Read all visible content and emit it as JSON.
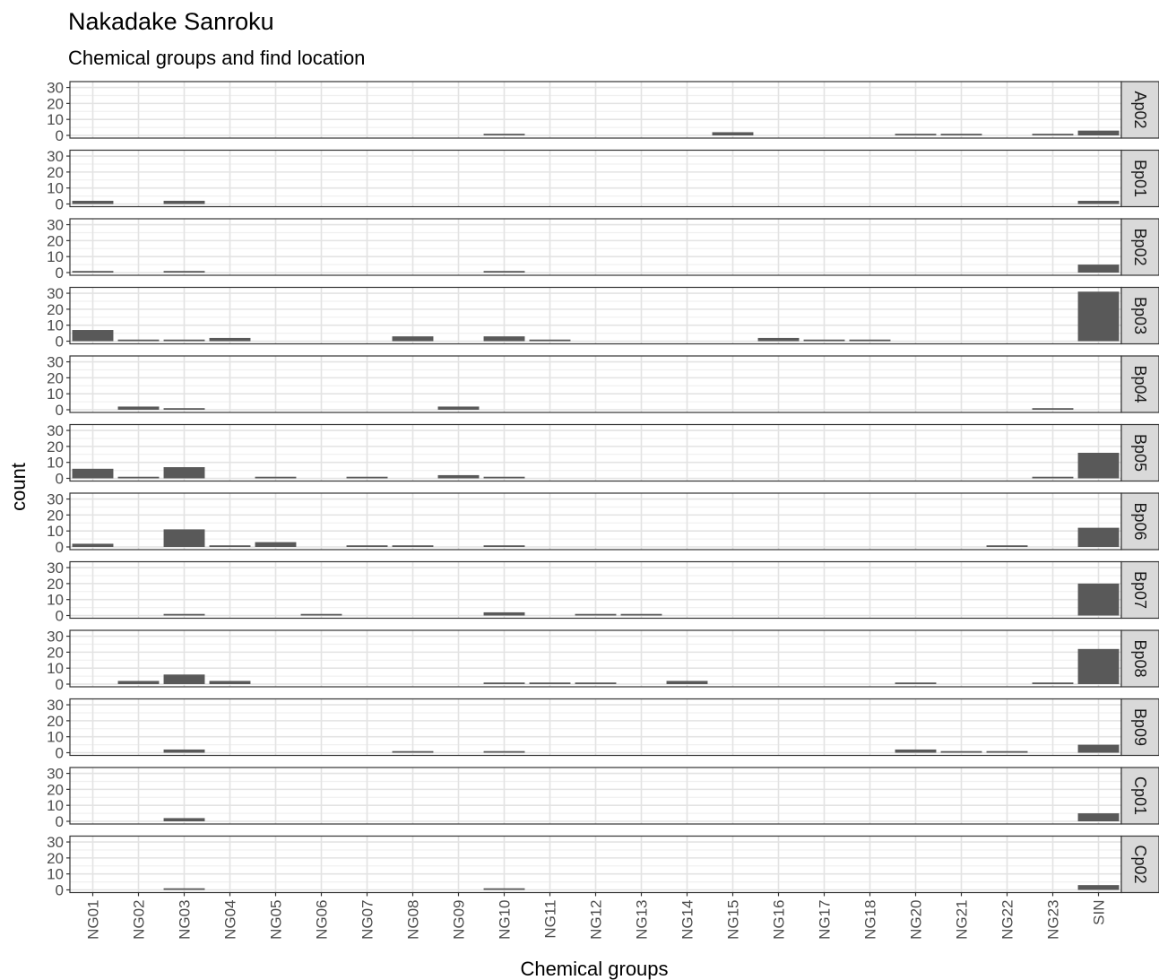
{
  "chart_data": {
    "type": "bar",
    "title": "Nakadake Sanroku",
    "subtitle": "Chemical groups and find location",
    "xlabel": "Chemical groups",
    "ylabel": "count",
    "ylim": [
      0,
      32
    ],
    "yticks": [
      0,
      10,
      20,
      30
    ],
    "grid": true,
    "legend": "none",
    "bar_color": "#595959",
    "strip_color": "#d9d9d9",
    "categories": [
      "NG01",
      "NG02",
      "NG03",
      "NG04",
      "NG05",
      "NG06",
      "NG07",
      "NG08",
      "NG09",
      "NG10",
      "NG11",
      "NG12",
      "NG13",
      "NG14",
      "NG15",
      "NG16",
      "NG17",
      "NG18",
      "NG20",
      "NG21",
      "NG22",
      "NG23",
      "SIN"
    ],
    "series": [
      {
        "name": "Ap02",
        "values": [
          0,
          0,
          0,
          0,
          0,
          0,
          0,
          0,
          0,
          1,
          0,
          0,
          0,
          0,
          2,
          0,
          0,
          0,
          1,
          1,
          0,
          1,
          3
        ]
      },
      {
        "name": "Bp01",
        "values": [
          2,
          0,
          2,
          0,
          0,
          0,
          0,
          0,
          0,
          0,
          0,
          0,
          0,
          0,
          0,
          0,
          0,
          0,
          0,
          0,
          0,
          0,
          2
        ]
      },
      {
        "name": "Bp02",
        "values": [
          1,
          0,
          1,
          0,
          0,
          0,
          0,
          0,
          0,
          1,
          0,
          0,
          0,
          0,
          0,
          0,
          0,
          0,
          0,
          0,
          0,
          0,
          5
        ]
      },
      {
        "name": "Bp03",
        "values": [
          7,
          1,
          1,
          2,
          0,
          0,
          0,
          3,
          0,
          3,
          1,
          0,
          0,
          0,
          0,
          2,
          1,
          1,
          0,
          0,
          0,
          0,
          31
        ]
      },
      {
        "name": "Bp04",
        "values": [
          0,
          2,
          1,
          0,
          0,
          0,
          0,
          0,
          2,
          0,
          0,
          0,
          0,
          0,
          0,
          0,
          0,
          0,
          0,
          0,
          0,
          1,
          0
        ]
      },
      {
        "name": "Bp05",
        "values": [
          6,
          1,
          7,
          0,
          1,
          0,
          1,
          0,
          2,
          1,
          0,
          0,
          0,
          0,
          0,
          0,
          0,
          0,
          0,
          0,
          0,
          1,
          16
        ]
      },
      {
        "name": "Bp06",
        "values": [
          2,
          0,
          11,
          1,
          3,
          0,
          1,
          1,
          0,
          1,
          0,
          0,
          0,
          0,
          0,
          0,
          0,
          0,
          0,
          0,
          1,
          0,
          12
        ]
      },
      {
        "name": "Bp07",
        "values": [
          0,
          0,
          1,
          0,
          0,
          1,
          0,
          0,
          0,
          2,
          0,
          1,
          1,
          0,
          0,
          0,
          0,
          0,
          0,
          0,
          0,
          0,
          20
        ]
      },
      {
        "name": "Bp08",
        "values": [
          0,
          2,
          6,
          2,
          0,
          0,
          0,
          0,
          0,
          1,
          1,
          1,
          0,
          2,
          0,
          0,
          0,
          0,
          1,
          0,
          0,
          1,
          22
        ]
      },
      {
        "name": "Bp09",
        "values": [
          0,
          0,
          2,
          0,
          0,
          0,
          0,
          1,
          0,
          1,
          0,
          0,
          0,
          0,
          0,
          0,
          0,
          0,
          2,
          1,
          1,
          0,
          5
        ]
      },
      {
        "name": "Cp01",
        "values": [
          0,
          0,
          2,
          0,
          0,
          0,
          0,
          0,
          0,
          0,
          0,
          0,
          0,
          0,
          0,
          0,
          0,
          0,
          0,
          0,
          0,
          0,
          5
        ]
      },
      {
        "name": "Cp02",
        "values": [
          0,
          0,
          1,
          0,
          0,
          0,
          0,
          0,
          0,
          1,
          0,
          0,
          0,
          0,
          0,
          0,
          0,
          0,
          0,
          0,
          0,
          0,
          3
        ]
      }
    ]
  }
}
